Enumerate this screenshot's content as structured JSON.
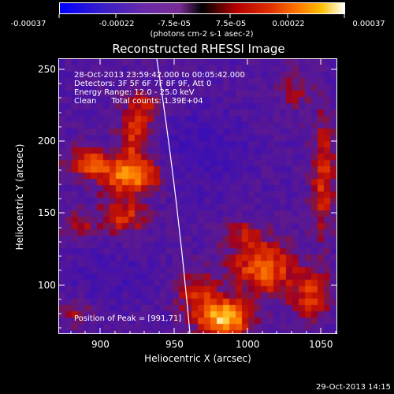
{
  "colorbar": {
    "tick_labels": [
      "-0.00037",
      "-0.00022",
      "-7.5e-05",
      "7.5e-05",
      "0.00022",
      "0.00037"
    ],
    "units": "(photons cm-2 s-1 asec-2)"
  },
  "title": "Reconstructed RHESSI Image",
  "annotations": {
    "time_range": "28-Oct-2013 23:59:42.000 to 00:05:42.000",
    "detectors": "Detectors: 3F 5F 6F 7F 8F 9F, Att 0",
    "energy": "Energy Range: 12.0 - 25.0 keV",
    "clean": "Clean      Total counts: 1.39E+04",
    "peak": "Position of Peak = [991,71]"
  },
  "axes": {
    "xlabel": "Heliocentric X (arcsec)",
    "ylabel": "Heliocentric Y (arcsec)",
    "x_ticks": [
      "900",
      "950",
      "1000",
      "1050"
    ],
    "y_ticks": [
      "250",
      "200",
      "150",
      "100"
    ],
    "x_range": [
      868,
      1062
    ],
    "y_range": [
      62,
      258
    ]
  },
  "footer": {
    "date": "29-Oct-2013 14:15"
  },
  "colors": {
    "background": "#000000",
    "limb": "#ffffff"
  }
}
